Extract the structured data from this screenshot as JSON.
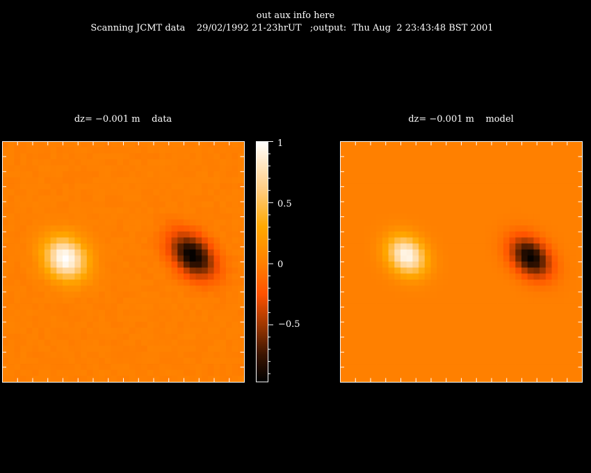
{
  "header": {
    "aux_line": "out aux info here",
    "info_line": "Scanning JCMT data    29/02/1992 21-23hrUT   ;output:  Thu Aug  2 23:43:48 BST 2001"
  },
  "chart_data": [
    {
      "type": "heatmap",
      "title": "dz= −0.001 m    data",
      "grid": [
        40,
        40
      ],
      "features": [
        {
          "kind": "positive peak",
          "value": 1.0,
          "col": 10,
          "row": 19
        },
        {
          "kind": "negative peak",
          "value": -0.97,
          "col": 31,
          "row": 18.5
        }
      ],
      "background_value": 0.0,
      "noise": true
    },
    {
      "type": "heatmap",
      "title": "dz= −0.001 m    model",
      "grid": [
        40,
        40
      ],
      "features": [
        {
          "kind": "positive peak",
          "value": 0.95,
          "col": 10.5,
          "row": 18.5
        },
        {
          "kind": "negative peak",
          "value": -0.95,
          "col": 31,
          "row": 18.8
        }
      ],
      "background_value": 0.0,
      "noise": false
    }
  ],
  "colorbar": {
    "range": [
      -0.97,
      1.0
    ],
    "tick_labels": [
      "1",
      "0.5",
      "0",
      "−0.5"
    ],
    "tick_values": [
      1,
      0.5,
      0,
      -0.5
    ],
    "colormap": [
      [
        -0.97,
        "#000000"
      ],
      [
        -0.75,
        "#3a1400"
      ],
      [
        -0.5,
        "#a03800"
      ],
      [
        -0.25,
        "#ff5200"
      ],
      [
        0.0,
        "#ff8000"
      ],
      [
        0.3,
        "#ffa800"
      ],
      [
        0.6,
        "#ffcc80"
      ],
      [
        1.0,
        "#ffffff"
      ]
    ]
  }
}
